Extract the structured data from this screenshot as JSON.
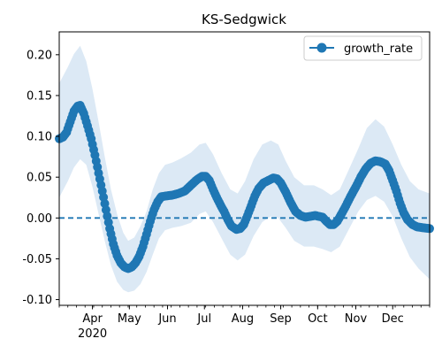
{
  "chart_data": {
    "type": "line",
    "title": "KS-Sedgwick",
    "xlabel": "",
    "ylabel": "",
    "x_start": "2020-03-05",
    "x_end": "2020-12-31",
    "x_ticks": [
      {
        "date": "2020-04-01",
        "label": "Apr",
        "sublabel": "2020"
      },
      {
        "date": "2020-05-01",
        "label": "May",
        "sublabel": ""
      },
      {
        "date": "2020-06-01",
        "label": "Jun",
        "sublabel": ""
      },
      {
        "date": "2020-07-01",
        "label": "Jul",
        "sublabel": ""
      },
      {
        "date": "2020-08-01",
        "label": "Aug",
        "sublabel": ""
      },
      {
        "date": "2020-09-01",
        "label": "Sep",
        "sublabel": ""
      },
      {
        "date": "2020-10-01",
        "label": "Oct",
        "sublabel": ""
      },
      {
        "date": "2020-11-01",
        "label": "Nov",
        "sublabel": ""
      },
      {
        "date": "2020-12-01",
        "label": "Dec",
        "sublabel": ""
      }
    ],
    "y_ticks": [
      "-0.10",
      "-0.05",
      "0.00",
      "0.05",
      "0.10",
      "0.15",
      "0.20"
    ],
    "ylim": [
      -0.107,
      0.228
    ],
    "reference_line": 0.0,
    "legend": {
      "position": "top-right",
      "entries": [
        "growth_rate"
      ]
    },
    "colors": {
      "line": "#1f77b4",
      "band": "#dce9f5",
      "zero_line": "#1f77b4"
    },
    "series": [
      {
        "name": "growth_rate",
        "points": [
          [
            "2020-03-05",
            0.097
          ],
          [
            "2020-03-08",
            0.099
          ],
          [
            "2020-03-11",
            0.105
          ],
          [
            "2020-03-14",
            0.118
          ],
          [
            "2020-03-17",
            0.131
          ],
          [
            "2020-03-20",
            0.137
          ],
          [
            "2020-03-22",
            0.138
          ],
          [
            "2020-03-25",
            0.128
          ],
          [
            "2020-03-28",
            0.113
          ],
          [
            "2020-03-31",
            0.097
          ],
          [
            "2020-04-03",
            0.077
          ],
          [
            "2020-04-06",
            0.055
          ],
          [
            "2020-04-09",
            0.033
          ],
          [
            "2020-04-12",
            0.01
          ],
          [
            "2020-04-15",
            -0.013
          ],
          [
            "2020-04-18",
            -0.032
          ],
          [
            "2020-04-21",
            -0.046
          ],
          [
            "2020-04-24",
            -0.055
          ],
          [
            "2020-04-27",
            -0.06
          ],
          [
            "2020-04-30",
            -0.062
          ],
          [
            "2020-05-03",
            -0.06
          ],
          [
            "2020-05-06",
            -0.055
          ],
          [
            "2020-05-09",
            -0.047
          ],
          [
            "2020-05-12",
            -0.035
          ],
          [
            "2020-05-15",
            -0.02
          ],
          [
            "2020-05-18",
            -0.004
          ],
          [
            "2020-05-21",
            0.01
          ],
          [
            "2020-05-24",
            0.02
          ],
          [
            "2020-05-27",
            0.026
          ],
          [
            "2020-05-31",
            0.027
          ],
          [
            "2020-06-05",
            0.028
          ],
          [
            "2020-06-10",
            0.03
          ],
          [
            "2020-06-15",
            0.033
          ],
          [
            "2020-06-20",
            0.04
          ],
          [
            "2020-06-25",
            0.047
          ],
          [
            "2020-06-29",
            0.051
          ],
          [
            "2020-07-02",
            0.051
          ],
          [
            "2020-07-05",
            0.046
          ],
          [
            "2020-07-08",
            0.035
          ],
          [
            "2020-07-11",
            0.025
          ],
          [
            "2020-07-14",
            0.016
          ],
          [
            "2020-07-17",
            0.008
          ],
          [
            "2020-07-20",
            -0.002
          ],
          [
            "2020-07-23",
            -0.01
          ],
          [
            "2020-07-27",
            -0.014
          ],
          [
            "2020-07-30",
            -0.013
          ],
          [
            "2020-08-02",
            -0.008
          ],
          [
            "2020-08-05",
            0.003
          ],
          [
            "2020-08-08",
            0.015
          ],
          [
            "2020-08-11",
            0.027
          ],
          [
            "2020-08-14",
            0.036
          ],
          [
            "2020-08-18",
            0.043
          ],
          [
            "2020-08-22",
            0.046
          ],
          [
            "2020-08-26",
            0.049
          ],
          [
            "2020-08-29",
            0.048
          ],
          [
            "2020-09-01",
            0.043
          ],
          [
            "2020-09-05",
            0.032
          ],
          [
            "2020-09-09",
            0.019
          ],
          [
            "2020-09-13",
            0.008
          ],
          [
            "2020-09-17",
            0.003
          ],
          [
            "2020-09-21",
            0.001
          ],
          [
            "2020-09-25",
            0.002
          ],
          [
            "2020-09-29",
            0.003
          ],
          [
            "2020-10-02",
            0.002
          ],
          [
            "2020-10-05",
            0.001
          ],
          [
            "2020-10-08",
            -0.004
          ],
          [
            "2020-10-11",
            -0.008
          ],
          [
            "2020-10-14",
            -0.008
          ],
          [
            "2020-10-17",
            -0.004
          ],
          [
            "2020-10-20",
            0.004
          ],
          [
            "2020-10-24",
            0.015
          ],
          [
            "2020-10-28",
            0.027
          ],
          [
            "2020-11-01",
            0.038
          ],
          [
            "2020-11-05",
            0.05
          ],
          [
            "2020-11-09",
            0.06
          ],
          [
            "2020-11-13",
            0.067
          ],
          [
            "2020-11-17",
            0.07
          ],
          [
            "2020-11-21",
            0.069
          ],
          [
            "2020-11-25",
            0.066
          ],
          [
            "2020-11-28",
            0.058
          ],
          [
            "2020-12-01",
            0.046
          ],
          [
            "2020-12-04",
            0.033
          ],
          [
            "2020-12-07",
            0.018
          ],
          [
            "2020-12-10",
            0.006
          ],
          [
            "2020-12-13",
            -0.002
          ],
          [
            "2020-12-17",
            -0.008
          ],
          [
            "2020-12-21",
            -0.011
          ],
          [
            "2020-12-26",
            -0.012
          ],
          [
            "2020-12-31",
            -0.013
          ]
        ]
      }
    ],
    "band": {
      "upper": [
        [
          "2020-03-05",
          0.165
        ],
        [
          "2020-03-12",
          0.185
        ],
        [
          "2020-03-17",
          0.201
        ],
        [
          "2020-03-22",
          0.211
        ],
        [
          "2020-03-27",
          0.192
        ],
        [
          "2020-04-01",
          0.158
        ],
        [
          "2020-04-06",
          0.118
        ],
        [
          "2020-04-11",
          0.075
        ],
        [
          "2020-04-16",
          0.035
        ],
        [
          "2020-04-21",
          0.005
        ],
        [
          "2020-04-26",
          -0.018
        ],
        [
          "2020-04-30",
          -0.028
        ],
        [
          "2020-05-05",
          -0.024
        ],
        [
          "2020-05-10",
          -0.01
        ],
        [
          "2020-05-15",
          0.008
        ],
        [
          "2020-05-20",
          0.035
        ],
        [
          "2020-05-25",
          0.055
        ],
        [
          "2020-05-30",
          0.065
        ],
        [
          "2020-06-05",
          0.068
        ],
        [
          "2020-06-12",
          0.073
        ],
        [
          "2020-06-20",
          0.08
        ],
        [
          "2020-06-27",
          0.09
        ],
        [
          "2020-07-02",
          0.092
        ],
        [
          "2020-07-08",
          0.078
        ],
        [
          "2020-07-15",
          0.055
        ],
        [
          "2020-07-22",
          0.035
        ],
        [
          "2020-07-28",
          0.03
        ],
        [
          "2020-08-03",
          0.045
        ],
        [
          "2020-08-10",
          0.072
        ],
        [
          "2020-08-17",
          0.09
        ],
        [
          "2020-08-24",
          0.095
        ],
        [
          "2020-08-30",
          0.09
        ],
        [
          "2020-09-05",
          0.07
        ],
        [
          "2020-09-12",
          0.05
        ],
        [
          "2020-09-20",
          0.04
        ],
        [
          "2020-09-28",
          0.04
        ],
        [
          "2020-10-05",
          0.035
        ],
        [
          "2020-10-12",
          0.028
        ],
        [
          "2020-10-19",
          0.035
        ],
        [
          "2020-10-26",
          0.058
        ],
        [
          "2020-11-03",
          0.085
        ],
        [
          "2020-11-10",
          0.11
        ],
        [
          "2020-11-17",
          0.121
        ],
        [
          "2020-11-24",
          0.112
        ],
        [
          "2020-12-01",
          0.09
        ],
        [
          "2020-12-08",
          0.065
        ],
        [
          "2020-12-15",
          0.045
        ],
        [
          "2020-12-22",
          0.035
        ],
        [
          "2020-12-31",
          0.03
        ]
      ],
      "lower": [
        [
          "2020-03-05",
          0.025
        ],
        [
          "2020-03-12",
          0.045
        ],
        [
          "2020-03-17",
          0.062
        ],
        [
          "2020-03-22",
          0.072
        ],
        [
          "2020-03-27",
          0.065
        ],
        [
          "2020-04-01",
          0.038
        ],
        [
          "2020-04-06",
          0.005
        ],
        [
          "2020-04-11",
          -0.028
        ],
        [
          "2020-04-16",
          -0.058
        ],
        [
          "2020-04-21",
          -0.078
        ],
        [
          "2020-04-26",
          -0.088
        ],
        [
          "2020-04-30",
          -0.091
        ],
        [
          "2020-05-05",
          -0.089
        ],
        [
          "2020-05-10",
          -0.081
        ],
        [
          "2020-05-15",
          -0.066
        ],
        [
          "2020-05-20",
          -0.045
        ],
        [
          "2020-05-25",
          -0.025
        ],
        [
          "2020-05-30",
          -0.015
        ],
        [
          "2020-06-05",
          -0.012
        ],
        [
          "2020-06-12",
          -0.01
        ],
        [
          "2020-06-20",
          -0.006
        ],
        [
          "2020-06-27",
          0.005
        ],
        [
          "2020-07-02",
          0.008
        ],
        [
          "2020-07-08",
          -0.005
        ],
        [
          "2020-07-15",
          -0.025
        ],
        [
          "2020-07-22",
          -0.045
        ],
        [
          "2020-07-28",
          -0.052
        ],
        [
          "2020-08-03",
          -0.045
        ],
        [
          "2020-08-10",
          -0.022
        ],
        [
          "2020-08-17",
          -0.005
        ],
        [
          "2020-08-24",
          0.002
        ],
        [
          "2020-08-30",
          0.0
        ],
        [
          "2020-09-05",
          -0.012
        ],
        [
          "2020-09-12",
          -0.028
        ],
        [
          "2020-09-20",
          -0.035
        ],
        [
          "2020-09-28",
          -0.035
        ],
        [
          "2020-10-05",
          -0.038
        ],
        [
          "2020-10-12",
          -0.042
        ],
        [
          "2020-10-19",
          -0.035
        ],
        [
          "2020-10-26",
          -0.015
        ],
        [
          "2020-11-03",
          0.008
        ],
        [
          "2020-11-10",
          0.022
        ],
        [
          "2020-11-17",
          0.027
        ],
        [
          "2020-11-24",
          0.02
        ],
        [
          "2020-12-01",
          0.002
        ],
        [
          "2020-12-08",
          -0.025
        ],
        [
          "2020-12-15",
          -0.048
        ],
        [
          "2020-12-22",
          -0.062
        ],
        [
          "2020-12-31",
          -0.075
        ]
      ]
    }
  }
}
